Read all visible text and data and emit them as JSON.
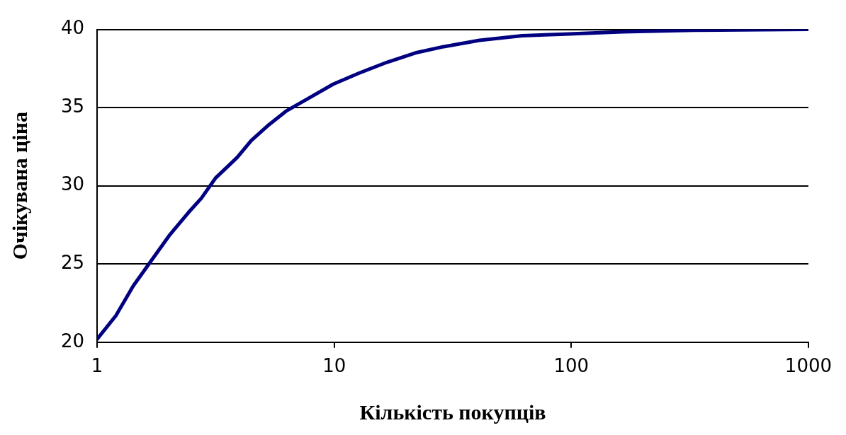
{
  "chart_data": {
    "type": "line",
    "xlabel": "Кількість покупців",
    "ylabel": "Очікувана ціна",
    "x": [
      1,
      1.2,
      1.42,
      1.69,
      2.01,
      2.43,
      2.75,
      3.16,
      3.89,
      4.47,
      5.3,
      6.3,
      7.8,
      9.9,
      12.7,
      16.7,
      22,
      29,
      41,
      62,
      94,
      164,
      330,
      1000
    ],
    "series": [
      {
        "color": "#000080",
        "values": [
          20.2,
          21.7,
          23.6,
          25.2,
          26.8,
          28.3,
          29.2,
          30.5,
          31.8,
          32.9,
          33.9,
          34.8,
          35.6,
          36.5,
          37.2,
          37.9,
          38.5,
          38.9,
          39.3,
          39.6,
          39.7,
          39.85,
          39.95,
          40
        ]
      }
    ],
    "log": "x",
    "xlim": [
      1,
      1000
    ],
    "xticks": [
      1,
      10,
      100,
      1000
    ],
    "ylim": [
      20,
      40
    ],
    "yticks": [
      20,
      25,
      30,
      35,
      40
    ],
    "grid": "y",
    "legend": false,
    "marker": "none",
    "line_style": "solid"
  }
}
